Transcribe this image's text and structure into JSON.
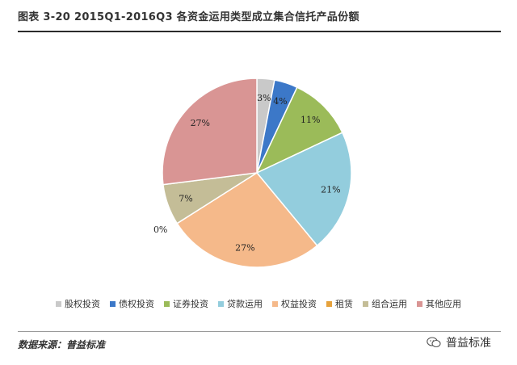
{
  "header": {
    "title": "图表 3-20 2015Q1-2016Q3 各资金运用类型成立集合信托产品份额"
  },
  "footer": {
    "source": "数据来源：普益标准",
    "brand": "普益标准"
  },
  "chart_data": {
    "type": "pie",
    "title": "",
    "start_angle_deg": 0,
    "direction": "clockwise",
    "legend_position": "bottom",
    "slices": [
      {
        "name": "股权投资",
        "value": 3,
        "label": "3%",
        "color": "#c9c9c9"
      },
      {
        "name": "债权投资",
        "value": 4,
        "label": "4%",
        "color": "#3c78c8"
      },
      {
        "name": "证券投资",
        "value": 11,
        "label": "11%",
        "color": "#9bbb59"
      },
      {
        "name": "贷款运用",
        "value": 21,
        "label": "21%",
        "color": "#93cddd"
      },
      {
        "name": "权益投资",
        "value": 27,
        "label": "27%",
        "color": "#f5b98a"
      },
      {
        "name": "租赁",
        "value": 0,
        "label": "0%",
        "color": "#e6a23c"
      },
      {
        "name": "组合运用",
        "value": 7,
        "label": "7%",
        "color": "#c4bd97"
      },
      {
        "name": "其他应用",
        "value": 27,
        "label": "27%",
        "color": "#d99594"
      }
    ]
  }
}
